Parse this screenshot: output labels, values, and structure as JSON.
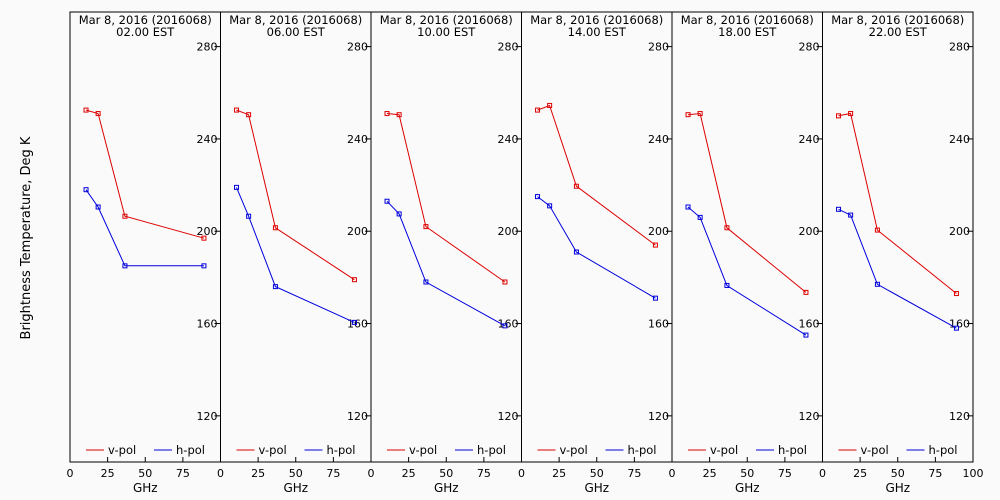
{
  "chart_data": {
    "type": "line",
    "ylabel": "Brightness Temperature, Deg K",
    "xlabel": "GHz",
    "xlim": [
      0,
      100
    ],
    "ylim": [
      100,
      295
    ],
    "x_ticks": [
      "0",
      "25",
      "50",
      "75",
      "100"
    ],
    "x_tick_values": [
      0,
      25,
      50,
      75,
      100
    ],
    "y_ticks": [
      "120",
      "160",
      "200",
      "240",
      "280"
    ],
    "y_tick_values": [
      120,
      160,
      200,
      240,
      280
    ],
    "series_styles": [
      {
        "name": "v-pol",
        "color": "#dd0000"
      },
      {
        "name": "h-pol",
        "color": "#0000dd"
      }
    ],
    "x": [
      10.65,
      18.7,
      36.5,
      89.0
    ],
    "panels": [
      {
        "title": "Mar  8, 2016 (2016068)",
        "time": "02.00 EST",
        "series": [
          {
            "name": "v-pol",
            "values": [
              252.5,
              251.0,
              206.5,
              197.0
            ]
          },
          {
            "name": "h-pol",
            "values": [
              218.0,
              210.5,
              185.0,
              185.0
            ]
          }
        ]
      },
      {
        "title": "Mar  8, 2016 (2016068)",
        "time": "06.00 EST",
        "series": [
          {
            "name": "v-pol",
            "values": [
              252.5,
              250.5,
              201.5,
              179.0
            ]
          },
          {
            "name": "h-pol",
            "values": [
              219.0,
              206.5,
              176.0,
              160.5
            ]
          }
        ]
      },
      {
        "title": "Mar  8, 2016 (2016068)",
        "time": "10.00 EST",
        "series": [
          {
            "name": "v-pol",
            "values": [
              251.0,
              250.5,
              202.0,
              178.0
            ]
          },
          {
            "name": "h-pol",
            "values": [
              213.0,
              207.5,
              178.0,
              159.0
            ]
          }
        ]
      },
      {
        "title": "Mar  8, 2016 (2016068)",
        "time": "14.00 EST",
        "series": [
          {
            "name": "v-pol",
            "values": [
              252.5,
              254.5,
              219.5,
              194.0
            ]
          },
          {
            "name": "h-pol",
            "values": [
              215.0,
              211.0,
              191.0,
              171.0
            ]
          }
        ]
      },
      {
        "title": "Mar  8, 2016 (2016068)",
        "time": "18.00 EST",
        "series": [
          {
            "name": "v-pol",
            "values": [
              250.5,
              251.0,
              201.5,
              173.5
            ]
          },
          {
            "name": "h-pol",
            "values": [
              210.5,
              206.0,
              176.5,
              155.0
            ]
          }
        ]
      },
      {
        "title": "Mar  8, 2016 (2016068)",
        "time": "22.00 EST",
        "series": [
          {
            "name": "v-pol",
            "values": [
              250.0,
              251.0,
              200.5,
              173.0
            ]
          },
          {
            "name": "h-pol",
            "values": [
              209.5,
              207.0,
              177.0,
              158.0
            ]
          }
        ]
      }
    ]
  }
}
